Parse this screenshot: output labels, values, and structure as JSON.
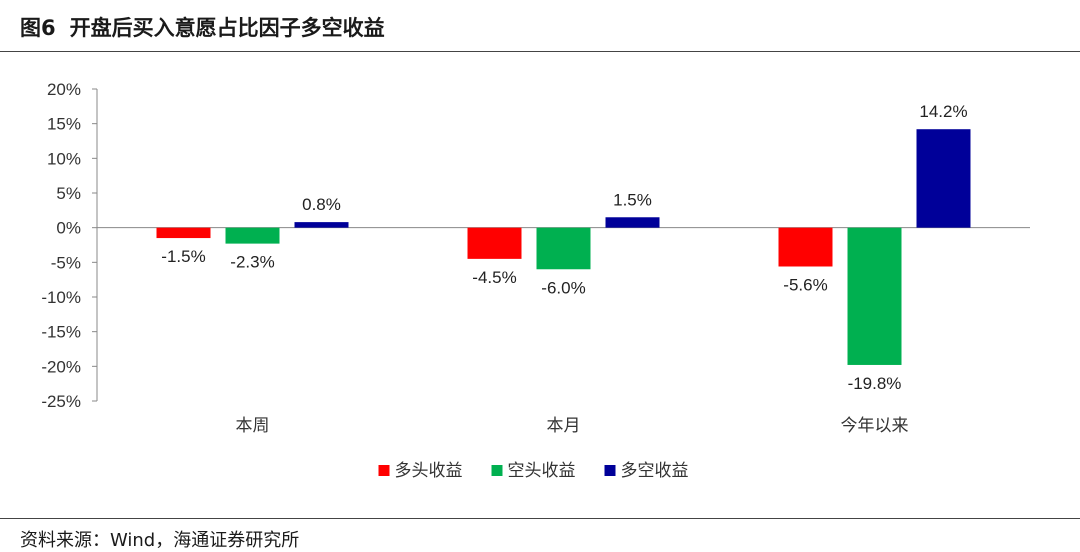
{
  "header": {
    "figure_number": "图6",
    "title": "开盘后买入意愿占比因子多空收益"
  },
  "footer": {
    "source": "资料来源：Wind，海通证券研究所"
  },
  "chart_data": {
    "type": "bar",
    "title": "开盘后买入意愿占比因子多空收益",
    "categories": [
      "本周",
      "本月",
      "今年以来"
    ],
    "series": [
      {
        "name": "多头收益",
        "color": "#ff0000",
        "values": [
          -1.5,
          -4.5,
          -5.6
        ],
        "labels": [
          "-1.5%",
          "-4.5%",
          "-5.6%"
        ]
      },
      {
        "name": "空头收益",
        "color": "#00b050",
        "values": [
          -2.3,
          -6.0,
          -19.8
        ],
        "labels": [
          "-2.3%",
          "-6.0%",
          "-19.8%"
        ]
      },
      {
        "name": "多空收益",
        "color": "#000099",
        "values": [
          0.8,
          1.5,
          14.2
        ],
        "labels": [
          "0.8%",
          "1.5%",
          "14.2%"
        ]
      }
    ],
    "ylim": [
      -25,
      20
    ],
    "yticks": [
      20,
      15,
      10,
      5,
      0,
      -5,
      -10,
      -15,
      -20,
      -25
    ],
    "ytick_labels": [
      "20%",
      "15%",
      "10%",
      "5%",
      "0%",
      "-5%",
      "-10%",
      "-15%",
      "-20%",
      "-25%"
    ],
    "xlabel": "",
    "ylabel": "",
    "grid": false,
    "legend": "bottom"
  }
}
